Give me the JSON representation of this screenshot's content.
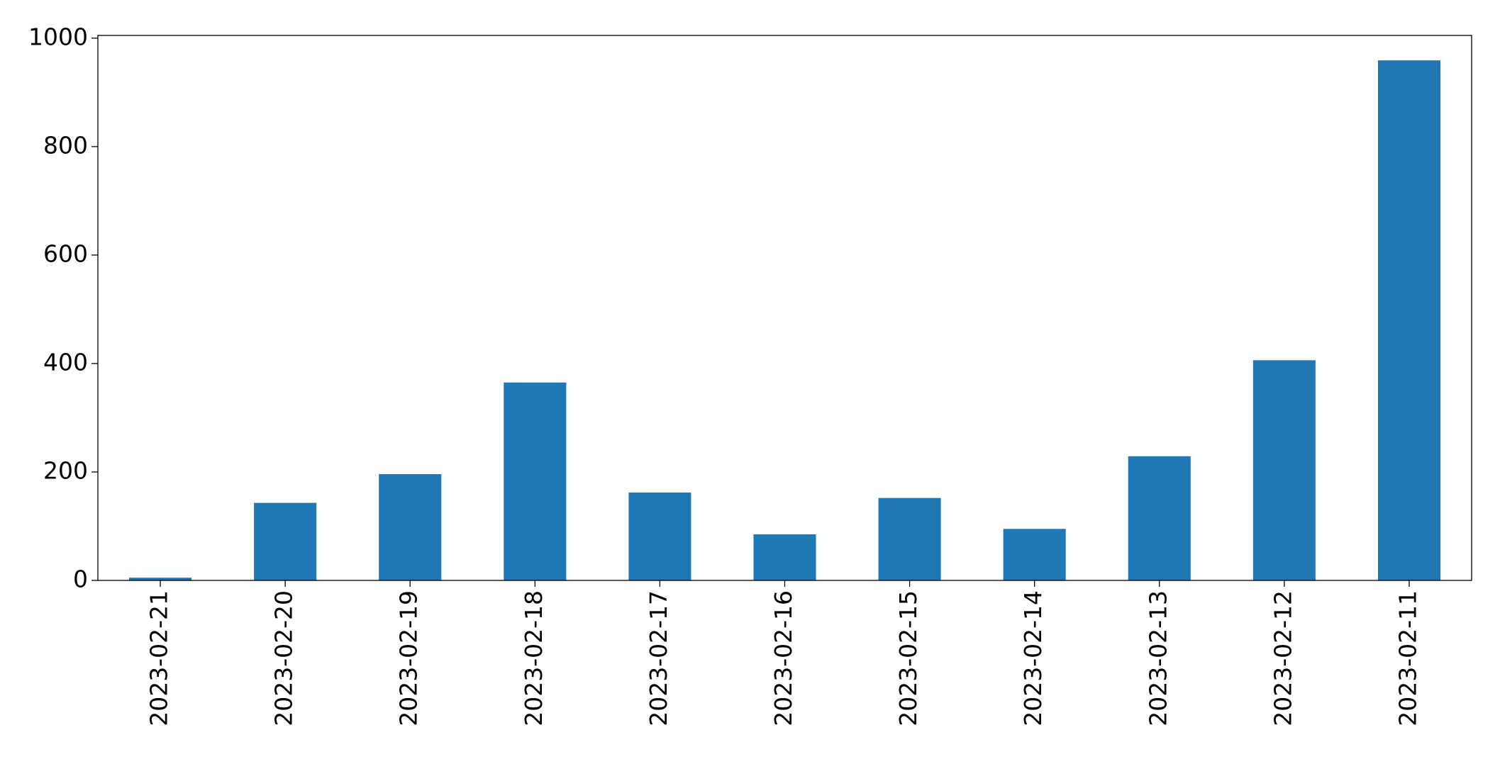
{
  "chart_data": {
    "type": "bar",
    "categories": [
      "2023-02-21",
      "2023-02-20",
      "2023-02-19",
      "2023-02-18",
      "2023-02-17",
      "2023-02-16",
      "2023-02-15",
      "2023-02-14",
      "2023-02-13",
      "2023-02-12",
      "2023-02-11"
    ],
    "values": [
      5,
      143,
      196,
      365,
      162,
      85,
      152,
      95,
      229,
      406,
      959
    ],
    "color": "#1f77b4",
    "ylim": [
      0,
      1005
    ],
    "yticks": [
      0,
      200,
      400,
      600,
      800,
      1000
    ],
    "grid": false
  }
}
